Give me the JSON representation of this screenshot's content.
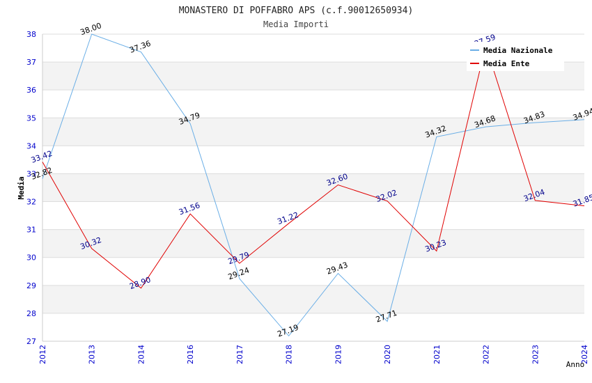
{
  "chart_data": {
    "type": "line",
    "title": "MONASTERO DI POFFABRO APS (c.f.90012650934)",
    "subtitle": "Media Importi",
    "ylabel": "Media",
    "xlabel": "Anno",
    "x": [
      "2012",
      "2013",
      "2014",
      "2016",
      "2017",
      "2018",
      "2019",
      "2020",
      "2021",
      "2022",
      "2023",
      "2024"
    ],
    "ylim": [
      27,
      38
    ],
    "yticks": [
      "27",
      "28",
      "29",
      "30",
      "31",
      "32",
      "33",
      "34",
      "35",
      "36",
      "37",
      "38"
    ],
    "grid": true,
    "legend_position": "top-right",
    "series": [
      {
        "name": "Media Nazionale",
        "color": "#6aaee6",
        "label_color": "#000000",
        "values": [
          32.82,
          38.0,
          37.36,
          34.79,
          29.24,
          27.19,
          29.43,
          27.71,
          34.32,
          34.68,
          34.83,
          34.94
        ],
        "labels": [
          "32.82",
          "38.00",
          "37.36",
          "34.79",
          "29.24",
          "27.19",
          "29.43",
          "27.71",
          "34.32",
          "34.68",
          "34.83",
          "34.94"
        ]
      },
      {
        "name": "Media Ente",
        "color": "#e00000",
        "label_color": "#00008b",
        "values": [
          33.42,
          30.32,
          28.9,
          31.56,
          29.79,
          31.22,
          32.6,
          32.02,
          30.23,
          37.59,
          32.04,
          31.85
        ],
        "labels": [
          "33.42",
          "30.32",
          "28.90",
          "31.56",
          "29.79",
          "31.22",
          "32.60",
          "32.02",
          "30.23",
          "37.59",
          "32.04",
          "31.85"
        ]
      }
    ]
  },
  "colors": {
    "axis_text": "#0000cc",
    "band": "#f3f3f3",
    "grid": "#dddddd"
  }
}
